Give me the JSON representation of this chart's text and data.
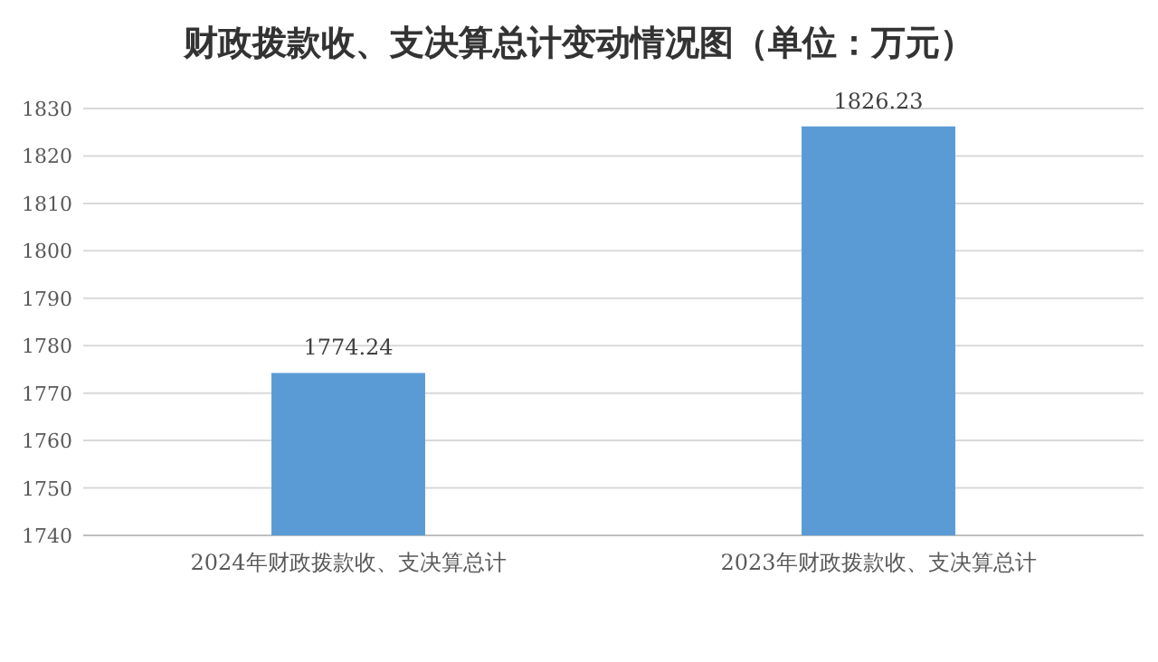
{
  "chart_data": {
    "type": "bar",
    "title": "财政拨款收、支决算总计变动情况图（单位：万元）",
    "categories": [
      "2024年财政拨款收、支决算总计",
      "2023年财政拨款收、支决算总计"
    ],
    "values": [
      1774.24,
      1826.23
    ],
    "color": "#5b9bd5",
    "ylim": [
      1740,
      1830
    ],
    "yticks": [
      1740,
      1750,
      1760,
      1770,
      1780,
      1790,
      1800,
      1810,
      1820,
      1830
    ],
    "grid": "y",
    "data_labels": true
  }
}
